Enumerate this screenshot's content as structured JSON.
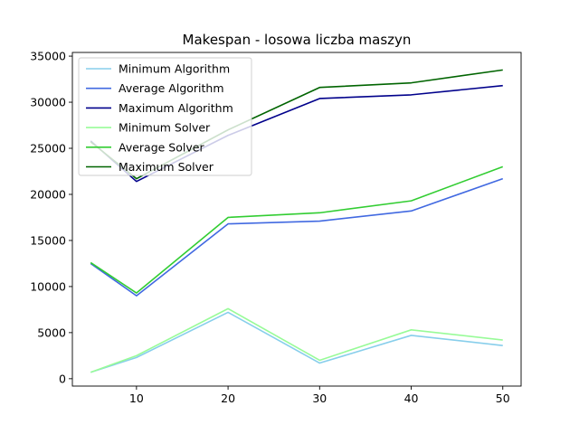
{
  "chart_data": {
    "type": "line",
    "title": "Makespan - losowa liczba maszyn",
    "xlabel": "",
    "ylabel": "",
    "x": [
      5,
      10,
      20,
      30,
      40,
      50
    ],
    "xticks": [
      10,
      20,
      30,
      40,
      50
    ],
    "yticks": [
      0,
      5000,
      10000,
      15000,
      20000,
      25000,
      30000,
      35000
    ],
    "xlim": [
      3,
      52
    ],
    "ylim": [
      -800,
      35400
    ],
    "grid": false,
    "legend_position": "top-left",
    "series": [
      {
        "name": "Minimum Algorithm",
        "color": "#87CEEB",
        "values": [
          700,
          2300,
          7200,
          1700,
          4700,
          3600
        ]
      },
      {
        "name": "Average Algorithm",
        "color": "#4169E1",
        "values": [
          12500,
          9000,
          16800,
          17100,
          18200,
          21700
        ]
      },
      {
        "name": "Maximum Algorithm",
        "color": "#00008B",
        "values": [
          25800,
          21400,
          26400,
          30400,
          30800,
          31800
        ]
      },
      {
        "name": "Minimum Solver",
        "color": "#98FB98",
        "values": [
          700,
          2500,
          7600,
          2000,
          5300,
          4200
        ]
      },
      {
        "name": "Average Solver",
        "color": "#32CD32",
        "values": [
          12600,
          9300,
          17500,
          18000,
          19300,
          23000
        ]
      },
      {
        "name": "Maximum Solver",
        "color": "#006400",
        "values": [
          25700,
          21700,
          27000,
          31600,
          32100,
          33500
        ]
      }
    ]
  }
}
